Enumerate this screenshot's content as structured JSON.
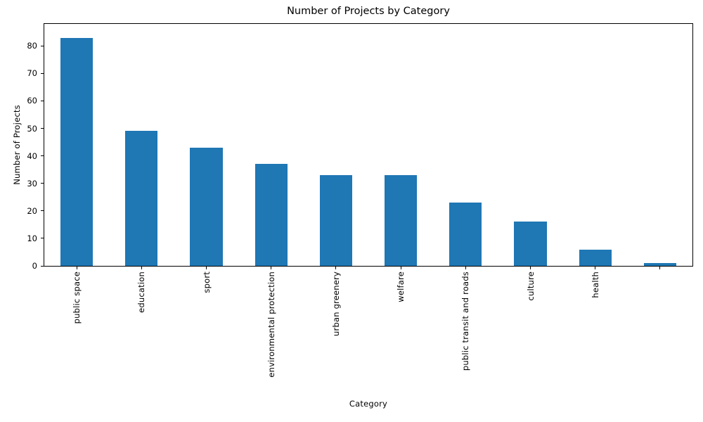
{
  "chart_data": {
    "type": "bar",
    "title": "Number of Projects by Category",
    "xlabel": "Category",
    "ylabel": "Number of Projects",
    "categories": [
      "public space",
      "education",
      "sport",
      "environmental protection",
      "urban greenery",
      "welfare",
      "public transit and roads",
      "culture",
      "health",
      ""
    ],
    "values": [
      83,
      49,
      43,
      37,
      33,
      33,
      23,
      16,
      6,
      1
    ],
    "ylim": [
      0,
      88
    ],
    "yticks": [
      0,
      10,
      20,
      30,
      40,
      50,
      60,
      70,
      80
    ],
    "bar_color": "#1f77b4",
    "bar_width_fraction": 0.5,
    "grid": false,
    "legend": "none",
    "x_tick_rotation_deg": 90
  }
}
